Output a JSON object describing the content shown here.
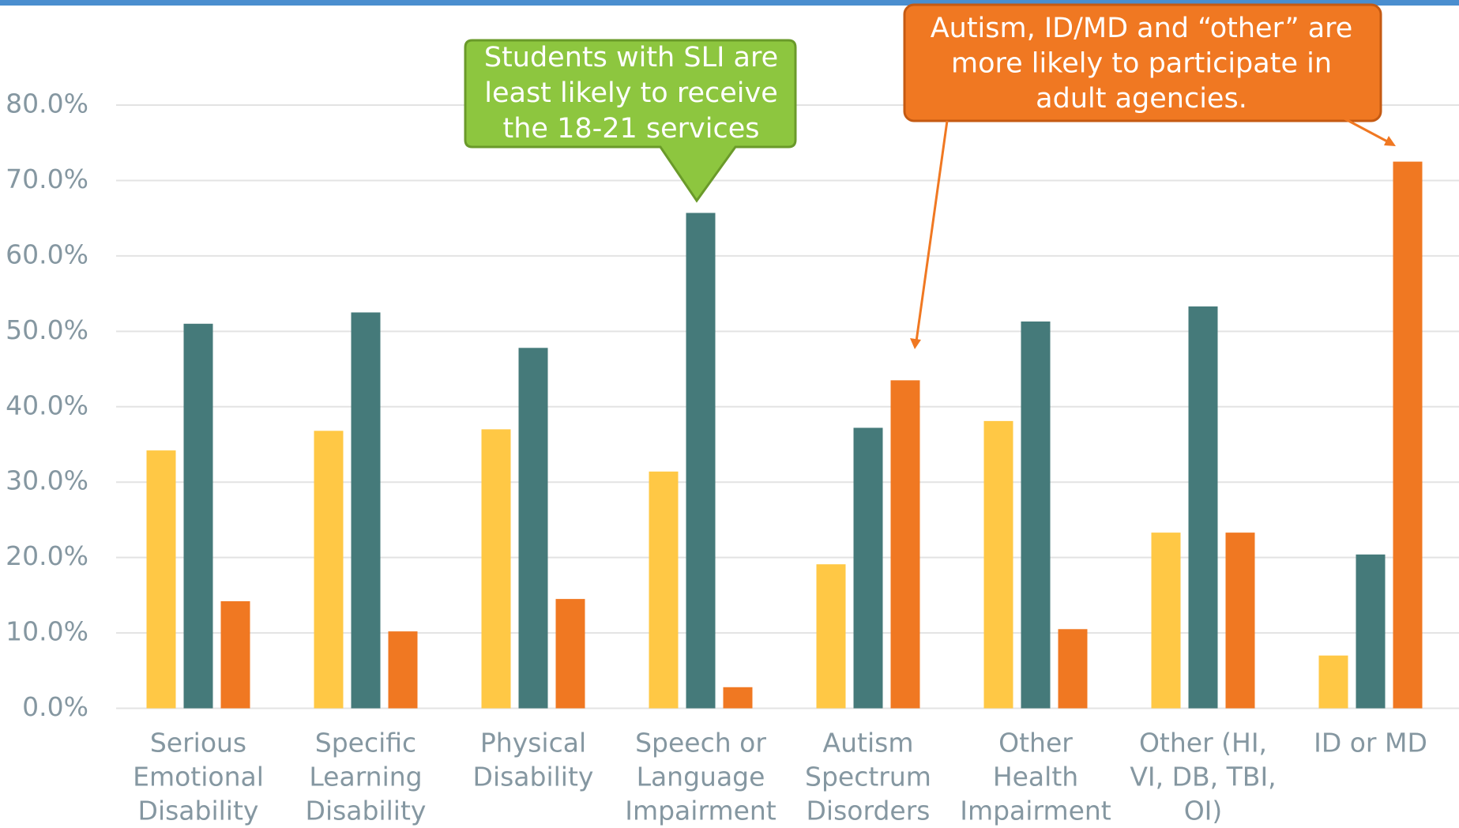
{
  "chart_data": {
    "type": "bar",
    "categories": [
      [
        "Serious",
        "Emotional",
        "Disability"
      ],
      [
        "Specific",
        "Learning",
        "Disability"
      ],
      [
        "Physical",
        "Disability"
      ],
      [
        "Speech or",
        "Language",
        "Impairment"
      ],
      [
        "Autism",
        "Spectrum",
        "Disorders"
      ],
      [
        "Other",
        "Health",
        "Impairment"
      ],
      [
        "Other (HI,",
        "VI, DB, TBI,",
        "OI)"
      ],
      [
        "ID or MD"
      ]
    ],
    "series": [
      {
        "color": "#ffc845",
        "values": [
          34.2,
          36.8,
          37.0,
          31.4,
          19.1,
          38.1,
          23.3,
          7.0
        ]
      },
      {
        "color": "#457a7a",
        "values": [
          51.0,
          52.5,
          47.8,
          65.7,
          37.2,
          51.3,
          53.3,
          20.4
        ]
      },
      {
        "color": "#f07822",
        "values": [
          14.2,
          10.2,
          14.5,
          2.8,
          43.5,
          10.5,
          23.3,
          72.5
        ]
      }
    ],
    "ylim": [
      0,
      80
    ],
    "yticks": [
      {
        "value": 0,
        "label": "0.0%"
      },
      {
        "value": 10,
        "label": "10.0%"
      },
      {
        "value": 20,
        "label": "20.0%"
      },
      {
        "value": 30,
        "label": "30.0%"
      },
      {
        "value": 40,
        "label": "40.0%"
      },
      {
        "value": 50,
        "label": "50.0%"
      },
      {
        "value": 60,
        "label": "60.0%"
      },
      {
        "value": 70,
        "label": "70.0%"
      },
      {
        "value": 80,
        "label": "80.0%"
      }
    ],
    "grid": true,
    "annotations": [
      {
        "lines": [
          "Students with SLI are",
          "least likely to receive",
          "the 18-21 services"
        ]
      },
      {
        "lines": [
          "Autism, ID/MD and “other” are",
          "more likely to participate in",
          "adult agencies."
        ]
      }
    ]
  }
}
